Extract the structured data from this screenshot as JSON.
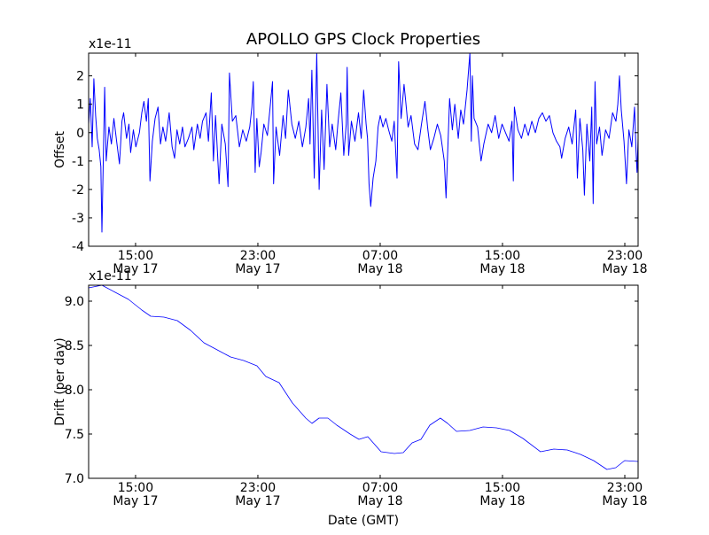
{
  "chart_data": [
    {
      "type": "line",
      "title": "APOLLO GPS Clock Properties",
      "ylabel": "Offset",
      "xlabel": "",
      "offset_text": "x1e-11",
      "x_units": "hours since May 17 00:00 GMT",
      "xlim": [
        11.93,
        47.87
      ],
      "ylim": [
        -4,
        2.8
      ],
      "yticks": [
        -4,
        -3,
        -2,
        -1,
        0,
        1,
        2
      ],
      "ytick_labels": [
        "-4",
        "-3",
        "-2",
        "-1",
        "0",
        "1",
        "2"
      ],
      "xticks": [
        15,
        23,
        31,
        39,
        47
      ],
      "xtick_labels": [
        [
          "15:00",
          "May 17"
        ],
        [
          "23:00",
          "May 17"
        ],
        [
          "07:00",
          "May 18"
        ],
        [
          "15:00",
          "May 18"
        ],
        [
          "23:00",
          "May 18"
        ]
      ],
      "color": "#0000ff",
      "series": [
        {
          "name": "Offset",
          "x": [
            11.93,
            12.04,
            12.16,
            12.27,
            12.39,
            12.5,
            12.62,
            12.73,
            12.8,
            12.89,
            12.98,
            13.08,
            13.26,
            13.42,
            13.58,
            13.76,
            13.95,
            14.11,
            14.22,
            14.41,
            14.57,
            14.68,
            14.86,
            15.02,
            15.25,
            15.41,
            15.55,
            15.71,
            15.83,
            15.94,
            16.1,
            16.28,
            16.47,
            16.63,
            16.79,
            16.97,
            17.2,
            17.39,
            17.55,
            17.71,
            17.89,
            18.07,
            18.23,
            18.46,
            18.69,
            18.81,
            19.04,
            19.22,
            19.38,
            19.61,
            19.77,
            19.95,
            20.09,
            20.23,
            20.46,
            20.64,
            20.87,
            21.05,
            21.14,
            21.33,
            21.56,
            21.79,
            22.01,
            22.24,
            22.47,
            22.61,
            22.7,
            22.82,
            22.93,
            23.09,
            23.21,
            23.39,
            23.62,
            23.8,
            23.96,
            24.03,
            24.19,
            24.42,
            24.65,
            24.81,
            24.99,
            25.22,
            25.45,
            25.68,
            25.91,
            26.14,
            26.32,
            26.41,
            26.53,
            26.69,
            26.85,
            27.01,
            27.17,
            27.33,
            27.52,
            27.7,
            27.86,
            28.09,
            28.25,
            28.43,
            28.62,
            28.78,
            28.84,
            28.94,
            29.12,
            29.35,
            29.58,
            29.76,
            29.92,
            30.08,
            30.17,
            30.27,
            30.38,
            30.54,
            30.72,
            30.86,
            31.0,
            31.18,
            31.37,
            31.55,
            31.76,
            31.92,
            32.1,
            32.21,
            32.37,
            32.56,
            32.67,
            32.83,
            33.02,
            33.25,
            33.47,
            33.7,
            33.93,
            34.12,
            34.28,
            34.51,
            34.74,
            34.96,
            35.19,
            35.31,
            35.45,
            35.54,
            35.72,
            35.88,
            36.11,
            36.27,
            36.45,
            36.68,
            36.87,
            36.96,
            37.03,
            37.14,
            37.37,
            37.6,
            37.78,
            38.06,
            38.29,
            38.52,
            38.75,
            38.97,
            39.2,
            39.43,
            39.62,
            39.71,
            39.78,
            40.01,
            40.24,
            40.46,
            40.69,
            40.92,
            41.15,
            41.38,
            41.61,
            41.84,
            42.07,
            42.3,
            42.53,
            42.76,
            42.87,
            43.1,
            43.33,
            43.56,
            43.79,
            43.9,
            44.06,
            44.25,
            44.36,
            44.52,
            44.71,
            44.84,
            44.93,
            45.05,
            45.16,
            45.35,
            45.51,
            45.74,
            45.97,
            46.2,
            46.42,
            46.54,
            46.65,
            46.77,
            46.95,
            47.11,
            47.27,
            47.46,
            47.64,
            47.73,
            47.8,
            47.87
          ],
          "y": [
            0.3,
            1.2,
            -0.5,
            1.9,
            0.6,
            -0.2,
            -0.6,
            -1.2,
            -3.5,
            -0.9,
            1.6,
            -1.0,
            0.2,
            -0.4,
            0.5,
            -0.3,
            -1.1,
            0.4,
            0.7,
            -0.2,
            0.3,
            -0.7,
            0.1,
            -0.5,
            0.0,
            0.7,
            1.1,
            0.4,
            1.2,
            -1.7,
            -0.3,
            0.5,
            0.9,
            -0.4,
            0.2,
            -0.3,
            0.7,
            -0.5,
            -0.9,
            0.1,
            -0.4,
            0.2,
            -0.5,
            -0.2,
            0.2,
            -0.6,
            0.3,
            -0.2,
            0.4,
            0.7,
            -0.3,
            1.4,
            -1.0,
            0.6,
            -1.8,
            0.3,
            -0.4,
            -1.9,
            2.1,
            0.4,
            0.6,
            -0.5,
            0.1,
            -0.3,
            0.2,
            0.9,
            1.8,
            -1.4,
            0.5,
            -1.2,
            -0.7,
            0.3,
            -0.1,
            0.9,
            1.8,
            -1.8,
            0.2,
            -0.8,
            0.6,
            -0.2,
            1.5,
            0.3,
            -0.2,
            0.4,
            -0.5,
            0.2,
            1.2,
            -0.4,
            2.2,
            -1.6,
            2.8,
            -2.0,
            0.8,
            -1.3,
            1.7,
            -0.5,
            0.3,
            -0.6,
            0.4,
            1.4,
            -0.8,
            0.3,
            2.3,
            -0.8,
            0.4,
            -0.3,
            0.7,
            -0.2,
            1.5,
            0.3,
            -0.2,
            -1.8,
            -2.6,
            -1.6,
            -1.0,
            0.2,
            0.6,
            0.2,
            0.5,
            0.1,
            -0.3,
            0.4,
            -1.6,
            2.5,
            0.5,
            1.7,
            1.1,
            0.2,
            0.6,
            -0.4,
            -0.6,
            0.3,
            1.1,
            0.1,
            -0.6,
            -0.2,
            0.3,
            -0.1,
            -1.0,
            -2.3,
            -0.2,
            1.2,
            0.1,
            1.0,
            -0.2,
            0.8,
            0.3,
            1.5,
            2.8,
            -0.3,
            2.0,
            0.5,
            0.2,
            -1.0,
            -0.4,
            0.3,
            0.0,
            0.6,
            -0.2,
            0.3,
            0.0,
            -0.3,
            0.4,
            -1.7,
            0.9,
            0.1,
            -0.2,
            0.3,
            -0.1,
            0.4,
            0.0,
            0.5,
            0.7,
            0.4,
            0.6,
            0.0,
            -0.3,
            -0.5,
            -0.9,
            -0.2,
            0.2,
            -0.4,
            0.8,
            -1.6,
            0.5,
            -0.6,
            -2.2,
            0.3,
            -1.0,
            0.9,
            -2.5,
            1.8,
            -0.4,
            0.2,
            -0.8,
            0.1,
            -0.2,
            0.7,
            0.4,
            1.0,
            2.0,
            0.8,
            -0.3,
            -1.8,
            0.1,
            -0.5,
            0.9,
            -0.6,
            -1.4,
            -0.2
          ]
        }
      ]
    },
    {
      "type": "line",
      "title": "",
      "ylabel": "Drift (per day)",
      "xlabel": "Date (GMT)",
      "offset_text": "x1e-11",
      "x_units": "hours since May 17 00:00 GMT",
      "xlim": [
        11.93,
        47.87
      ],
      "ylim": [
        7.0,
        9.18
      ],
      "yticks": [
        7.0,
        7.5,
        8.0,
        8.5,
        9.0
      ],
      "ytick_labels": [
        "7.0",
        "7.5",
        "8.0",
        "8.5",
        "9.0"
      ],
      "xticks": [
        15,
        23,
        31,
        39,
        47
      ],
      "xtick_labels": [
        [
          "15:00",
          "May 17"
        ],
        [
          "23:00",
          "May 17"
        ],
        [
          "07:00",
          "May 18"
        ],
        [
          "15:00",
          "May 18"
        ],
        [
          "23:00",
          "May 18"
        ]
      ],
      "color": "#0000ff",
      "series": [
        {
          "name": "Drift",
          "x": [
            11.93,
            12.8,
            13.67,
            14.54,
            15.41,
            15.99,
            16.86,
            17.73,
            18.6,
            19.47,
            20.34,
            21.21,
            22.07,
            22.94,
            23.52,
            24.39,
            25.26,
            26.13,
            26.54,
            27.0,
            27.58,
            28.16,
            29.03,
            29.61,
            30.19,
            31.06,
            31.93,
            32.51,
            33.09,
            33.67,
            34.25,
            34.94,
            35.41,
            35.99,
            36.86,
            37.73,
            38.6,
            39.47,
            40.34,
            41.49,
            42.36,
            43.23,
            44.1,
            44.96,
            45.83,
            46.41,
            46.99,
            47.87
          ],
          "y": [
            9.15,
            9.18,
            9.1,
            9.02,
            8.9,
            8.83,
            8.82,
            8.78,
            8.67,
            8.53,
            8.45,
            8.37,
            8.33,
            8.27,
            8.15,
            8.08,
            7.85,
            7.68,
            7.62,
            7.68,
            7.68,
            7.6,
            7.5,
            7.44,
            7.47,
            7.3,
            7.28,
            7.29,
            7.4,
            7.44,
            7.6,
            7.68,
            7.62,
            7.53,
            7.54,
            7.58,
            7.57,
            7.54,
            7.45,
            7.3,
            7.33,
            7.32,
            7.27,
            7.2,
            7.1,
            7.12,
            7.2,
            7.19
          ]
        }
      ]
    }
  ]
}
